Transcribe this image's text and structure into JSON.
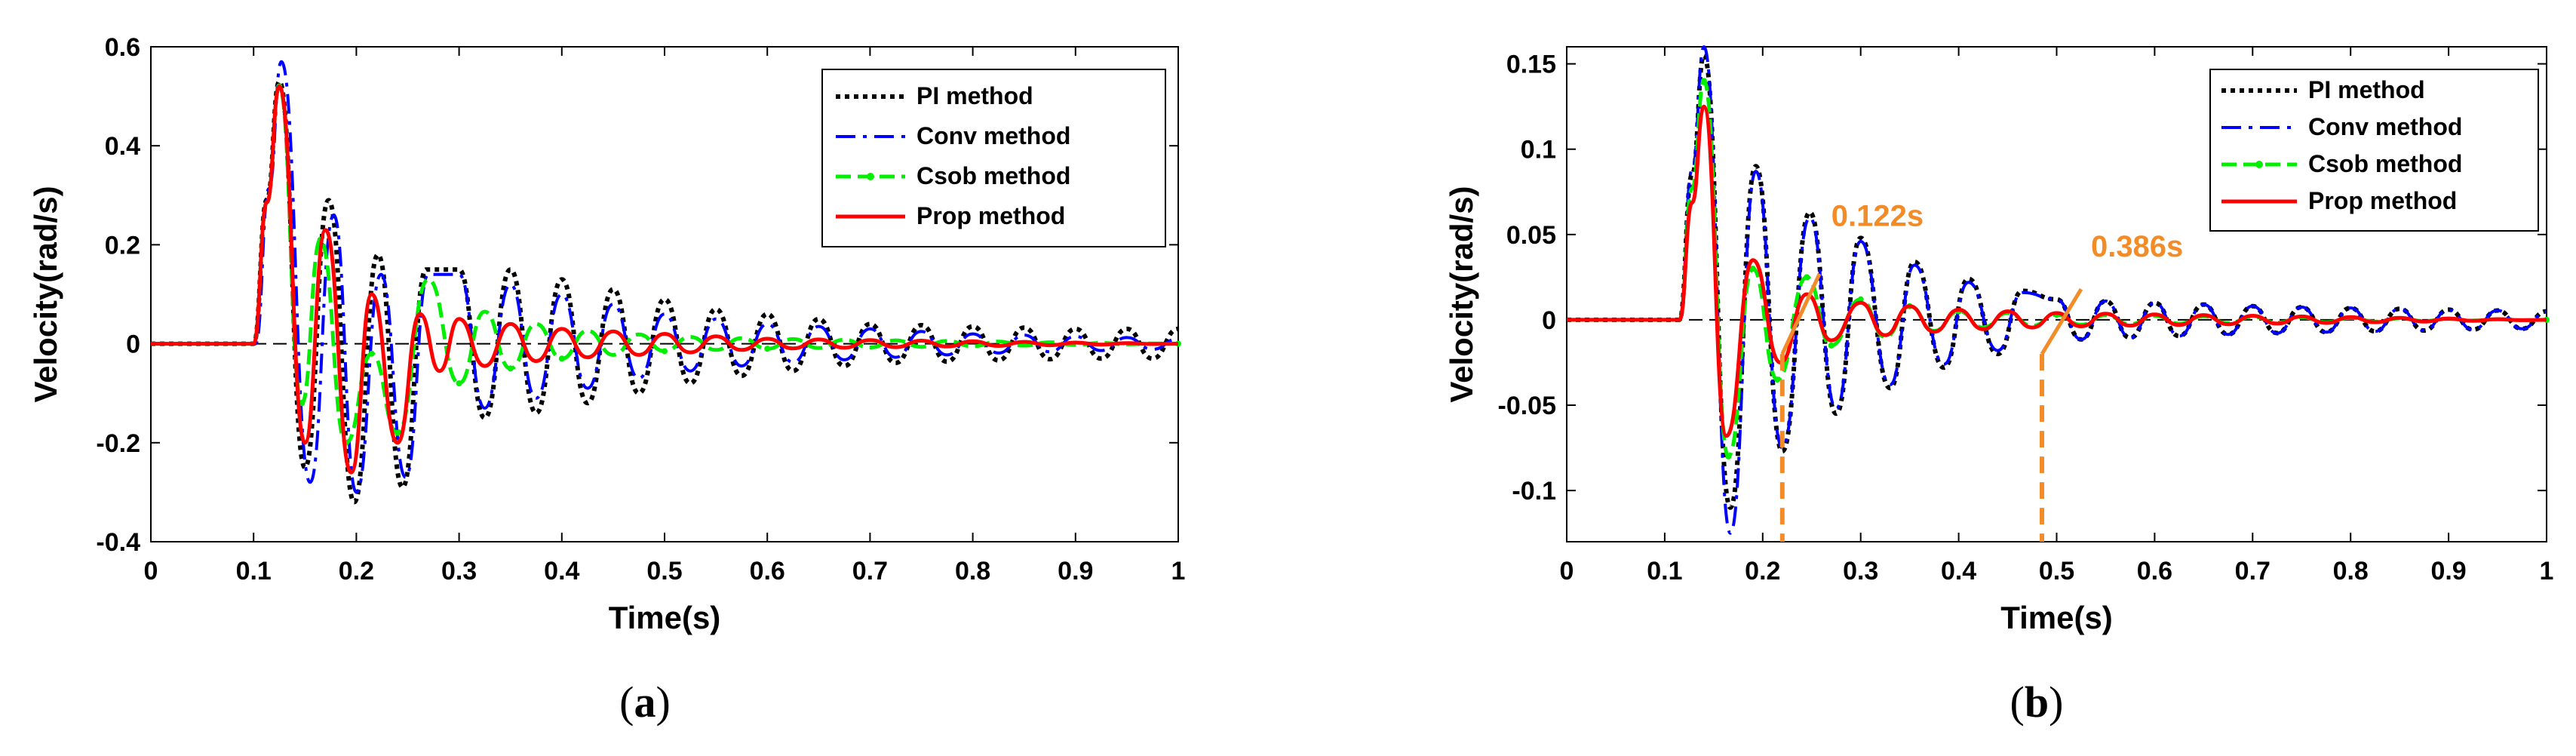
{
  "figure": {
    "panels": [
      {
        "label_open": "(",
        "label_letter": "a",
        "label_close": ")"
      },
      {
        "label_open": "(",
        "label_letter": "b",
        "label_close": ")"
      }
    ]
  },
  "colors": {
    "pi": "#000000",
    "conv": "#0000ff",
    "csob": "#00ee00",
    "prop": "#ff0000",
    "annotation": "#f28c28",
    "baseline": "#000000"
  },
  "chart_data": [
    {
      "type": "line",
      "title": "",
      "xlabel": "Time(s)",
      "ylabel": "Velocity(rad/s)",
      "xlim": [
        0,
        1
      ],
      "ylim": [
        -0.4,
        0.6
      ],
      "xticks": [
        0,
        0.1,
        0.2,
        0.3,
        0.4,
        0.5,
        0.6,
        0.7,
        0.8,
        0.9,
        1
      ],
      "xtick_labels": [
        "0",
        "0.1",
        "0.2",
        "0.3",
        "0.4",
        "0.5",
        "0.6",
        "0.7",
        "0.8",
        "0.9",
        "1"
      ],
      "yticks": [
        -0.4,
        -0.2,
        0,
        0.2,
        0.4,
        0.6
      ],
      "ytick_labels": [
        "-0.4",
        "-0.2",
        "0",
        "0.2",
        "0.4",
        "0.6"
      ],
      "grid": false,
      "legend_position": "top-right",
      "reference_line": 0,
      "series": [
        {
          "key": "pi",
          "name": "PI method",
          "style": "dotted",
          "color": "#000000",
          "peaks": [
            [
              0.125,
              0.53
            ],
            [
              0.15,
              -0.25
            ],
            [
              0.173,
              0.29
            ],
            [
              0.198,
              -0.32
            ],
            [
              0.221,
              0.18
            ],
            [
              0.245,
              -0.29
            ],
            [
              0.268,
              0.15
            ],
            [
              0.3,
              0.15
            ],
            [
              0.35,
              0.15
            ],
            [
              0.4,
              0.13
            ],
            [
              0.45,
              0.11
            ],
            [
              0.5,
              0.09
            ],
            [
              0.55,
              0.07
            ],
            [
              0.6,
              0.06
            ],
            [
              0.7,
              0.04
            ],
            [
              0.8,
              0.035
            ],
            [
              0.9,
              0.03
            ],
            [
              1.0,
              0.03
            ]
          ]
        },
        {
          "key": "conv",
          "name": "Conv method",
          "style": "dashdot",
          "color": "#0000ff",
          "peaks": [
            [
              0.127,
              0.57
            ],
            [
              0.155,
              -0.28
            ],
            [
              0.178,
              0.26
            ],
            [
              0.2,
              -0.3
            ],
            [
              0.224,
              0.14
            ],
            [
              0.248,
              -0.27
            ],
            [
              0.27,
              0.14
            ],
            [
              0.3,
              0.14
            ],
            [
              0.35,
              0.12
            ],
            [
              0.4,
              0.1
            ],
            [
              0.45,
              0.08
            ],
            [
              0.5,
              0.06
            ],
            [
              0.6,
              0.04
            ],
            [
              0.7,
              0.03
            ],
            [
              0.8,
              0.02
            ],
            [
              1.0,
              0.01
            ]
          ]
        },
        {
          "key": "csob",
          "name": "Csob method",
          "style": "dashed-marker",
          "color": "#00ee00",
          "peaks": [
            [
              0.125,
              0.52
            ],
            [
              0.147,
              -0.12
            ],
            [
              0.165,
              0.21
            ],
            [
              0.19,
              -0.2
            ],
            [
              0.215,
              -0.02
            ],
            [
              0.24,
              -0.18
            ],
            [
              0.3,
              -0.08
            ],
            [
              0.35,
              -0.05
            ],
            [
              0.4,
              -0.03
            ],
            [
              0.5,
              -0.015
            ],
            [
              0.6,
              -0.01
            ],
            [
              1.0,
              0
            ]
          ]
        },
        {
          "key": "prop",
          "name": "Prop method",
          "style": "solid",
          "color": "#ff0000",
          "peaks": [
            [
              0.125,
              0.52
            ],
            [
              0.15,
              -0.2
            ],
            [
              0.17,
              0.23
            ],
            [
              0.195,
              -0.26
            ],
            [
              0.215,
              0.1
            ],
            [
              0.24,
              -0.2
            ],
            [
              0.262,
              0.06
            ],
            [
              0.3,
              0.05
            ],
            [
              0.35,
              0.04
            ],
            [
              0.4,
              0.03
            ],
            [
              0.5,
              0.02
            ],
            [
              0.6,
              0.01
            ],
            [
              1.0,
              0
            ]
          ]
        }
      ]
    },
    {
      "type": "line",
      "title": "",
      "xlabel": "Time(s)",
      "ylabel": "Velocity(rad/s)",
      "xlim": [
        0,
        1
      ],
      "ylim": [
        -0.13,
        0.16
      ],
      "xticks": [
        0,
        0.1,
        0.2,
        0.3,
        0.4,
        0.5,
        0.6,
        0.7,
        0.8,
        0.9,
        1
      ],
      "xtick_labels": [
        "0",
        "0.1",
        "0.2",
        "0.3",
        "0.4",
        "0.5",
        "0.6",
        "0.7",
        "0.8",
        "0.9",
        "1"
      ],
      "yticks": [
        -0.1,
        -0.05,
        0,
        0.05,
        0.1,
        0.15
      ],
      "ytick_labels": [
        "-0.1",
        "-0.05",
        "0",
        "0.05",
        "0.1",
        "0.15"
      ],
      "grid": false,
      "legend_position": "top-right",
      "reference_line": 0,
      "annotations": [
        {
          "text": "0.122s",
          "marker_x": 0.22,
          "arrow_tip": [
            0.22,
            -0.02
          ],
          "arrow_tail": [
            0.258,
            0.027
          ],
          "label_at": [
            0.27,
            0.055
          ]
        },
        {
          "text": "0.386s",
          "marker_x": 0.485,
          "arrow_tip": [
            0.485,
            -0.02
          ],
          "arrow_tail": [
            0.525,
            0.018
          ],
          "label_at": [
            0.535,
            0.037
          ]
        }
      ],
      "series": [
        {
          "key": "pi",
          "name": "PI method",
          "style": "dotted",
          "color": "#000000",
          "peaks": [
            [
              0.14,
              0.155
            ],
            [
              0.167,
              -0.11
            ],
            [
              0.193,
              0.09
            ],
            [
              0.22,
              -0.077
            ],
            [
              0.248,
              0.063
            ],
            [
              0.275,
              -0.055
            ],
            [
              0.3,
              0.048
            ],
            [
              0.33,
              -0.04
            ],
            [
              0.355,
              0.034
            ],
            [
              0.385,
              -0.028
            ],
            [
              0.41,
              0.024
            ],
            [
              0.44,
              -0.02
            ],
            [
              0.465,
              0.017
            ],
            [
              0.5,
              0.012
            ],
            [
              0.6,
              0.01
            ],
            [
              0.7,
              0.008
            ],
            [
              0.8,
              0.007
            ],
            [
              0.9,
              0.006
            ],
            [
              1.0,
              0.005
            ]
          ]
        },
        {
          "key": "conv",
          "name": "Conv method",
          "style": "dashdot",
          "color": "#0000ff",
          "peaks": [
            [
              0.14,
              0.16
            ],
            [
              0.167,
              -0.125
            ],
            [
              0.193,
              0.087
            ],
            [
              0.22,
              -0.075
            ],
            [
              0.248,
              0.06
            ],
            [
              0.275,
              -0.052
            ],
            [
              0.3,
              0.046
            ],
            [
              0.33,
              -0.038
            ],
            [
              0.355,
              0.032
            ],
            [
              0.385,
              -0.026
            ],
            [
              0.41,
              0.022
            ],
            [
              0.44,
              -0.018
            ],
            [
              0.465,
              0.016
            ],
            [
              0.5,
              0.012
            ],
            [
              0.6,
              0.01
            ],
            [
              0.7,
              0.008
            ],
            [
              0.8,
              0.007
            ],
            [
              0.9,
              0.006
            ],
            [
              1.0,
              0.005
            ]
          ]
        },
        {
          "key": "csob",
          "name": "Csob method",
          "style": "dashed-marker",
          "color": "#00ee00",
          "peaks": [
            [
              0.14,
              0.14
            ],
            [
              0.165,
              -0.08
            ],
            [
              0.19,
              0.03
            ],
            [
              0.215,
              -0.035
            ],
            [
              0.245,
              0.025
            ],
            [
              0.27,
              -0.015
            ],
            [
              0.3,
              0.012
            ],
            [
              0.35,
              0.008
            ],
            [
              0.4,
              0.005
            ],
            [
              0.5,
              0.003
            ],
            [
              1.0,
              0
            ]
          ]
        },
        {
          "key": "prop",
          "name": "Prop method",
          "style": "solid",
          "color": "#ff0000",
          "peaks": [
            [
              0.14,
              0.125
            ],
            [
              0.163,
              -0.068
            ],
            [
              0.19,
              0.035
            ],
            [
              0.218,
              -0.025
            ],
            [
              0.245,
              0.015
            ],
            [
              0.27,
              -0.012
            ],
            [
              0.3,
              0.01
            ],
            [
              0.35,
              0.008
            ],
            [
              0.4,
              0.006
            ],
            [
              0.5,
              0.004
            ],
            [
              1.0,
              0
            ]
          ]
        }
      ]
    }
  ]
}
